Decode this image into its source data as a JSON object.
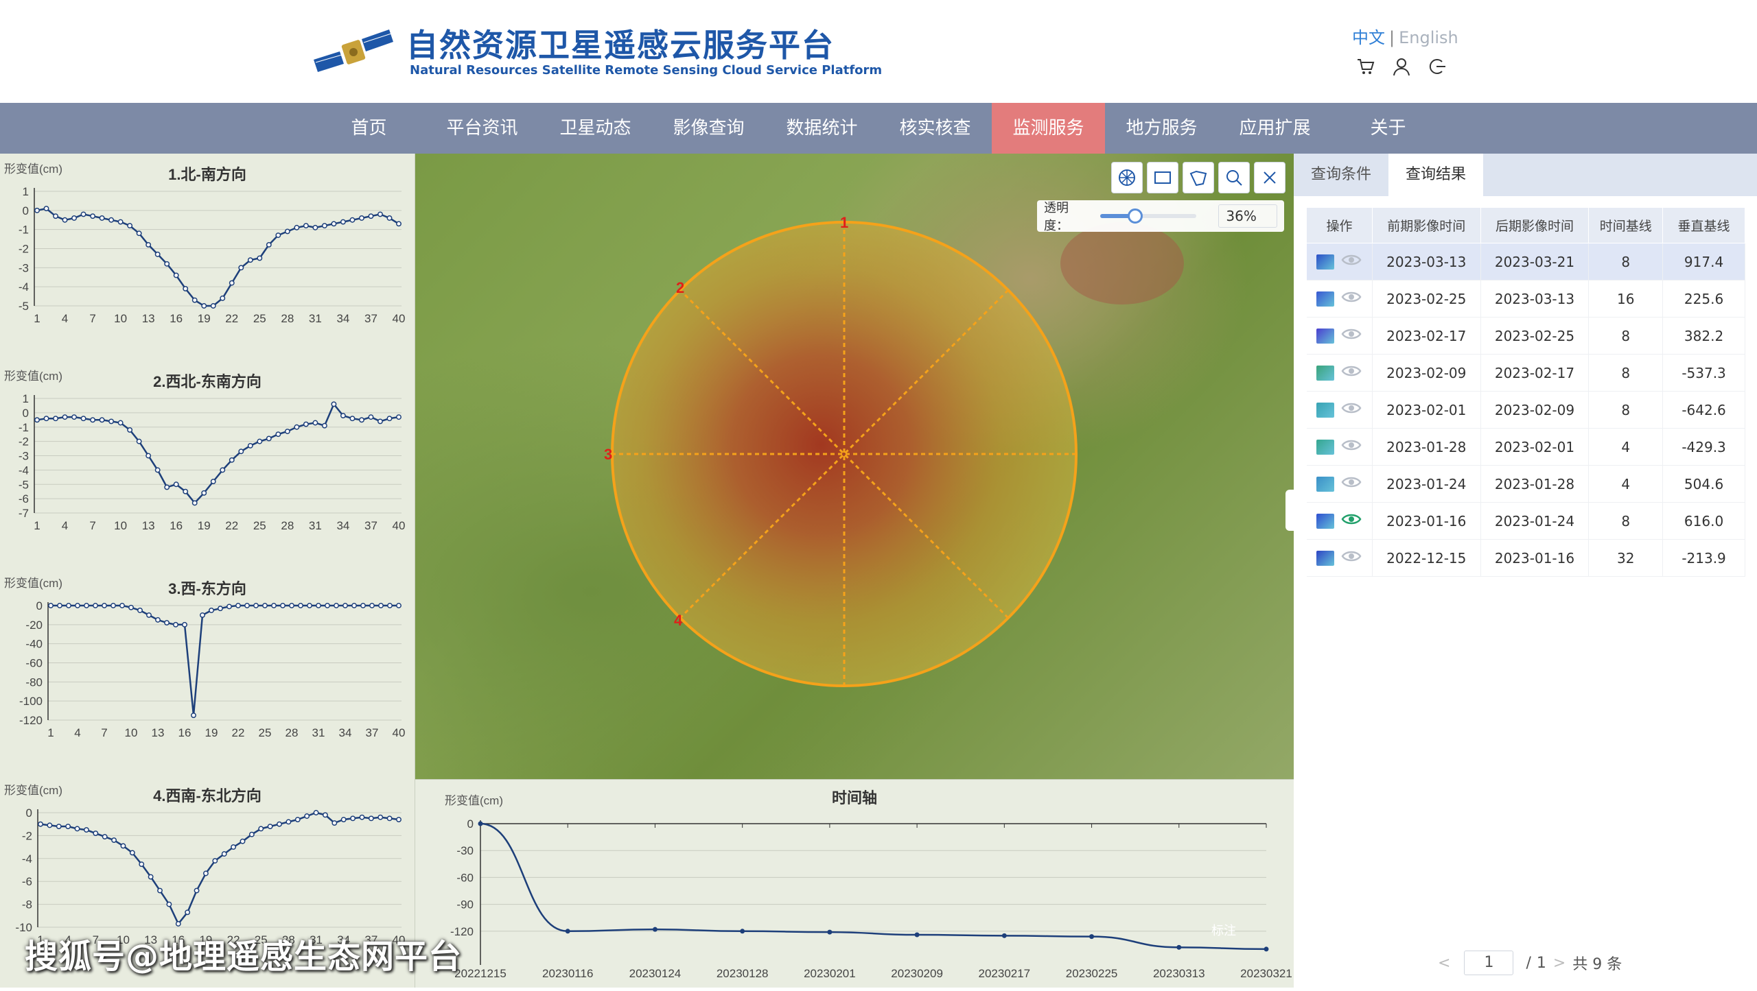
{
  "header": {
    "title_cn": "自然资源卫星遥感云服务平台",
    "title_en": "Natural Resources Satellite Remote Sensing Cloud Service Platform",
    "lang_cn": "中文",
    "lang_sep": "|",
    "lang_en": "English",
    "icons": [
      "cart-icon",
      "user-icon",
      "logout-icon"
    ]
  },
  "nav": {
    "items": [
      "首页",
      "平台资讯",
      "卫星动态",
      "影像查询",
      "数据统计",
      "核实核查",
      "监测服务",
      "地方服务",
      "应用扩展",
      "关于"
    ],
    "active_index": 6
  },
  "left_charts": [
    {
      "title": "1.北-南方向",
      "ylabel": "形变值(cm)"
    },
    {
      "title": "2.西北-东南方向",
      "ylabel": "形变值(cm)"
    },
    {
      "title": "3.西-东方向",
      "ylabel": "形变值(cm)"
    },
    {
      "title": "4.西南-东北方向",
      "ylabel": "形变值(cm)"
    }
  ],
  "chart_data": [
    {
      "type": "line",
      "title": "1.北-南方向",
      "ylabel": "形变值(cm)",
      "ylim": [
        -5,
        1
      ],
      "yticks": [
        1,
        0,
        -1,
        -2,
        -3,
        -4,
        -5
      ],
      "xticks": [
        1,
        4,
        7,
        10,
        13,
        16,
        19,
        22,
        25,
        28,
        31,
        34,
        37,
        40
      ],
      "x": [
        1,
        2,
        3,
        4,
        5,
        6,
        7,
        8,
        9,
        10,
        11,
        12,
        13,
        14,
        15,
        16,
        17,
        18,
        19,
        20,
        21,
        22,
        23,
        24,
        25,
        26,
        27,
        28,
        29,
        30,
        31,
        32,
        33,
        34,
        35,
        36,
        37,
        38,
        39,
        40
      ],
      "values": [
        0,
        0.1,
        -0.3,
        -0.5,
        -0.4,
        -0.2,
        -0.3,
        -0.4,
        -0.5,
        -0.6,
        -0.8,
        -1.2,
        -1.8,
        -2.3,
        -2.8,
        -3.4,
        -4.1,
        -4.7,
        -5.0,
        -5.0,
        -4.6,
        -3.8,
        -3.0,
        -2.6,
        -2.5,
        -1.8,
        -1.3,
        -1.1,
        -0.9,
        -0.8,
        -0.9,
        -0.8,
        -0.7,
        -0.6,
        -0.5,
        -0.4,
        -0.3,
        -0.2,
        -0.4,
        -0.7
      ]
    },
    {
      "type": "line",
      "title": "2.西北-东南方向",
      "ylabel": "形变值(cm)",
      "ylim": [
        -7,
        1
      ],
      "yticks": [
        1,
        0,
        -1,
        -2,
        -3,
        -4,
        -5,
        -6,
        -7
      ],
      "xticks": [
        1,
        4,
        7,
        10,
        13,
        16,
        19,
        22,
        25,
        28,
        31,
        34,
        37,
        40
      ],
      "x": [
        1,
        2,
        3,
        4,
        5,
        6,
        7,
        8,
        9,
        10,
        11,
        12,
        13,
        14,
        15,
        16,
        17,
        18,
        19,
        20,
        21,
        22,
        23,
        24,
        25,
        26,
        27,
        28,
        29,
        30,
        31,
        32,
        33,
        34,
        35,
        36,
        37,
        38,
        39,
        40
      ],
      "values": [
        -0.5,
        -0.4,
        -0.4,
        -0.3,
        -0.3,
        -0.4,
        -0.5,
        -0.5,
        -0.6,
        -0.7,
        -1.2,
        -2.0,
        -3.0,
        -4.0,
        -5.2,
        -5.0,
        -5.5,
        -6.3,
        -5.6,
        -4.8,
        -4.0,
        -3.3,
        -2.7,
        -2.3,
        -2.0,
        -1.8,
        -1.5,
        -1.3,
        -1.0,
        -0.8,
        -0.7,
        -0.9,
        0.6,
        -0.2,
        -0.4,
        -0.5,
        -0.3,
        -0.6,
        -0.4,
        -0.3
      ]
    },
    {
      "type": "line",
      "title": "3.西-东方向",
      "ylabel": "形变值(cm)",
      "ylim": [
        -120,
        0
      ],
      "yticks": [
        0,
        -20,
        -40,
        -60,
        -80,
        -100,
        -120
      ],
      "xticks": [
        1,
        4,
        7,
        10,
        13,
        16,
        19,
        22,
        25,
        28,
        31,
        34,
        37,
        40
      ],
      "x": [
        1,
        2,
        3,
        4,
        5,
        6,
        7,
        8,
        9,
        10,
        11,
        12,
        13,
        14,
        15,
        16,
        17,
        18,
        19,
        20,
        21,
        22,
        23,
        24,
        25,
        26,
        27,
        28,
        29,
        30,
        31,
        32,
        33,
        34,
        35,
        36,
        37,
        38,
        39,
        40
      ],
      "values": [
        0,
        0,
        0,
        0,
        0,
        0,
        0,
        0,
        0,
        -2,
        -5,
        -10,
        -15,
        -18,
        -20,
        -20,
        -115,
        -10,
        -5,
        -3,
        -1,
        0,
        0,
        0,
        0,
        0,
        0,
        0,
        0,
        0,
        0,
        0,
        0,
        0,
        0,
        0,
        0,
        0,
        0,
        0
      ]
    },
    {
      "type": "line",
      "title": "4.西南-东北方向",
      "ylabel": "形变值(cm)",
      "ylim": [
        -10,
        0
      ],
      "yticks": [
        0,
        -2,
        -4,
        -6,
        -8,
        -10
      ],
      "xticks": [
        1,
        4,
        7,
        10,
        13,
        16,
        19,
        22,
        25,
        28,
        31,
        34,
        37,
        40
      ],
      "x": [
        1,
        2,
        3,
        4,
        5,
        6,
        7,
        8,
        9,
        10,
        11,
        12,
        13,
        14,
        15,
        16,
        17,
        18,
        19,
        20,
        21,
        22,
        23,
        24,
        25,
        26,
        27,
        28,
        29,
        30,
        31,
        32,
        33,
        34,
        35,
        36,
        37,
        38,
        39,
        40
      ],
      "values": [
        -1.0,
        -1.1,
        -1.2,
        -1.2,
        -1.4,
        -1.5,
        -1.8,
        -2.1,
        -2.4,
        -2.9,
        -3.5,
        -4.5,
        -5.6,
        -6.8,
        -8.0,
        -9.7,
        -8.7,
        -6.8,
        -5.3,
        -4.2,
        -3.6,
        -3.0,
        -2.5,
        -1.9,
        -1.4,
        -1.2,
        -1.0,
        -0.8,
        -0.6,
        -0.3,
        0.0,
        -0.2,
        -0.9,
        -0.6,
        -0.5,
        -0.4,
        -0.5,
        -0.4,
        -0.5,
        -0.6
      ]
    },
    {
      "type": "line",
      "title": "时间轴",
      "ylabel": "形变值(cm)",
      "ylim": [
        -150,
        0
      ],
      "yticks": [
        0,
        -30,
        -60,
        -90,
        -120
      ],
      "categories": [
        "20221215",
        "20230116",
        "20230124",
        "20230128",
        "20230201",
        "20230209",
        "20230217",
        "20230225",
        "20230313",
        "20230321"
      ],
      "values": [
        0,
        -120,
        -118,
        -120,
        -121,
        -124,
        -125,
        -126,
        -138,
        -140
      ]
    }
  ],
  "map": {
    "opacity_label": "透明度：",
    "opacity_value": "36%",
    "opacity_fraction": 0.36,
    "direction_labels": [
      "1",
      "2",
      "3",
      "4"
    ],
    "tools": [
      "pan-icon",
      "rectangle-icon",
      "polygon-icon",
      "zoom-icon",
      "close-icon"
    ],
    "circle_color": "#f5a21a"
  },
  "timeline": {
    "title": "时间轴",
    "ylabel": "形变值(cm)",
    "overlay_text": "标注"
  },
  "right_panel": {
    "tabs": [
      "查询条件",
      "查询结果"
    ],
    "active_tab": 1,
    "columns": [
      "操作",
      "前期影像时间",
      "后期影像时间",
      "时间基线",
      "垂直基线"
    ],
    "rows": [
      {
        "before": "2023-03-13",
        "after": "2023-03-21",
        "temporal": "8",
        "perpendicular": "917.4",
        "selected": true,
        "eye_active": false
      },
      {
        "before": "2023-02-25",
        "after": "2023-03-13",
        "temporal": "16",
        "perpendicular": "225.6",
        "selected": false,
        "eye_active": false
      },
      {
        "before": "2023-02-17",
        "after": "2023-02-25",
        "temporal": "8",
        "perpendicular": "382.2",
        "selected": false,
        "eye_active": false
      },
      {
        "before": "2023-02-09",
        "after": "2023-02-17",
        "temporal": "8",
        "perpendicular": "-537.3",
        "selected": false,
        "eye_active": false
      },
      {
        "before": "2023-02-01",
        "after": "2023-02-09",
        "temporal": "8",
        "perpendicular": "-642.6",
        "selected": false,
        "eye_active": false
      },
      {
        "before": "2023-01-28",
        "after": "2023-02-01",
        "temporal": "4",
        "perpendicular": "-429.3",
        "selected": false,
        "eye_active": false
      },
      {
        "before": "2023-01-24",
        "after": "2023-01-28",
        "temporal": "4",
        "perpendicular": "504.6",
        "selected": false,
        "eye_active": false
      },
      {
        "before": "2023-01-16",
        "after": "2023-01-24",
        "temporal": "8",
        "perpendicular": "616.0",
        "selected": false,
        "eye_active": true
      },
      {
        "before": "2022-12-15",
        "after": "2023-01-16",
        "temporal": "32",
        "perpendicular": "-213.9",
        "selected": false,
        "eye_active": false
      }
    ],
    "pager": {
      "prev": "<",
      "current": "1",
      "sep": "/",
      "total_pages": "1",
      "next": ">",
      "total": "共 9 条"
    }
  },
  "watermark": "搜狐号@地理遥感生态网平台"
}
